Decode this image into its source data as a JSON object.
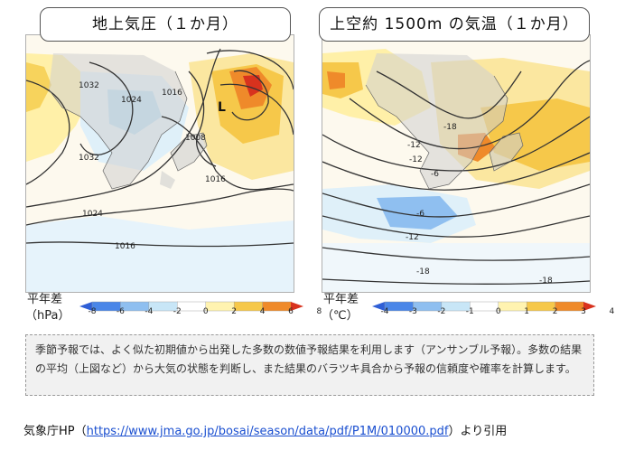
{
  "left_map": {
    "title": "地上気圧（１か月）",
    "unit_prefix": "平年差",
    "unit": "（hPa）",
    "scale_ticks": [
      "-8",
      "-6",
      "-4",
      "-2",
      "0",
      "2",
      "4",
      "6",
      "8"
    ],
    "scale_colors": [
      "#2f5fd6",
      "#4a86e8",
      "#8fbff0",
      "#c8e6f7",
      "#ffffff",
      "#fff3b0",
      "#f6c84a",
      "#ef8a2a",
      "#d8321e"
    ],
    "contours": [
      "1032",
      "1024",
      "1016",
      "1008",
      "1032",
      "1016",
      "1024",
      "1016"
    ],
    "low_marker": "L"
  },
  "right_map": {
    "title": "上空約 1500m の気温（１か月）",
    "unit_prefix": "平年差",
    "unit": "（℃）",
    "scale_ticks": [
      "-4",
      "-3",
      "-2",
      "-1",
      "0",
      "1",
      "2",
      "3",
      "4"
    ],
    "scale_colors": [
      "#2f5fd6",
      "#4a86e8",
      "#8fbff0",
      "#c8e6f7",
      "#ffffff",
      "#fff3b0",
      "#f6c84a",
      "#ef8a2a",
      "#d8321e"
    ],
    "contours": [
      "-18",
      "-12",
      "-12",
      "-6",
      "-6",
      "-12",
      "-18",
      "-18"
    ]
  },
  "note": "季節予報では、よく似た初期値から出発した多数の数値予報結果を利用します（アンサンブル予報）。多数の結果の平均（上図など）から大気の状態を判断し、また結果のバラツキ具合から予報の信頼度や確率を計算します。",
  "citation": {
    "prefix": "気象庁HP（",
    "url": "https://www.jma.go.jp/bosai/season/data/pdf/P1M/010000.pdf",
    "suffix": "）より引用"
  }
}
